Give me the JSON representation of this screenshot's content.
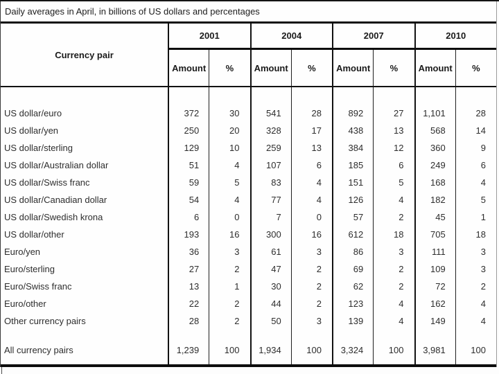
{
  "title": "Daily averages in April, in billions of US dollars and percentages",
  "table": {
    "row_header": "Currency pair",
    "col_groups": [
      {
        "year": "2001",
        "sub": [
          "Amount",
          "%"
        ]
      },
      {
        "year": "2004",
        "sub": [
          "Amount",
          "%"
        ]
      },
      {
        "year": "2007",
        "sub": [
          "Amount",
          "%"
        ]
      },
      {
        "year": "2010",
        "sub": [
          "Amount",
          "%"
        ]
      }
    ],
    "rows": [
      {
        "label": "US dollar/euro",
        "values": [
          "372",
          "30",
          "541",
          "28",
          "892",
          "27",
          "1,101",
          "28"
        ]
      },
      {
        "label": "US dollar/yen",
        "values": [
          "250",
          "20",
          "328",
          "17",
          "438",
          "13",
          "568",
          "14"
        ]
      },
      {
        "label": "US dollar/sterling",
        "values": [
          "129",
          "10",
          "259",
          "13",
          "384",
          "12",
          "360",
          "9"
        ]
      },
      {
        "label": "US dollar/Australian dollar",
        "values": [
          "51",
          "4",
          "107",
          "6",
          "185",
          "6",
          "249",
          "6"
        ]
      },
      {
        "label": "US dollar/Swiss franc",
        "values": [
          "59",
          "5",
          "83",
          "4",
          "151",
          "5",
          "168",
          "4"
        ]
      },
      {
        "label": "US dollar/Canadian dollar",
        "values": [
          "54",
          "4",
          "77",
          "4",
          "126",
          "4",
          "182",
          "5"
        ]
      },
      {
        "label": "US dollar/Swedish krona",
        "values": [
          "6",
          "0",
          "7",
          "0",
          "57",
          "2",
          "45",
          "1"
        ]
      },
      {
        "label": "US dollar/other",
        "values": [
          "193",
          "16",
          "300",
          "16",
          "612",
          "18",
          "705",
          "18"
        ]
      },
      {
        "label": "Euro/yen",
        "values": [
          "36",
          "3",
          "61",
          "3",
          "86",
          "3",
          "111",
          "3"
        ]
      },
      {
        "label": "Euro/sterling",
        "values": [
          "27",
          "2",
          "47",
          "2",
          "69",
          "2",
          "109",
          "3"
        ]
      },
      {
        "label": "Euro/Swiss franc",
        "values": [
          "13",
          "1",
          "30",
          "2",
          "62",
          "2",
          "72",
          "2"
        ]
      },
      {
        "label": "Euro/other",
        "values": [
          "22",
          "2",
          "44",
          "2",
          "123",
          "4",
          "162",
          "4"
        ]
      },
      {
        "label": "Other currency pairs",
        "values": [
          "28",
          "2",
          "50",
          "3",
          "139",
          "4",
          "149",
          "4"
        ]
      }
    ],
    "total_row": {
      "label": "All currency pairs",
      "values": [
        "1,239",
        "100",
        "1,934",
        "100",
        "3,324",
        "100",
        "3,981",
        "100"
      ]
    }
  }
}
